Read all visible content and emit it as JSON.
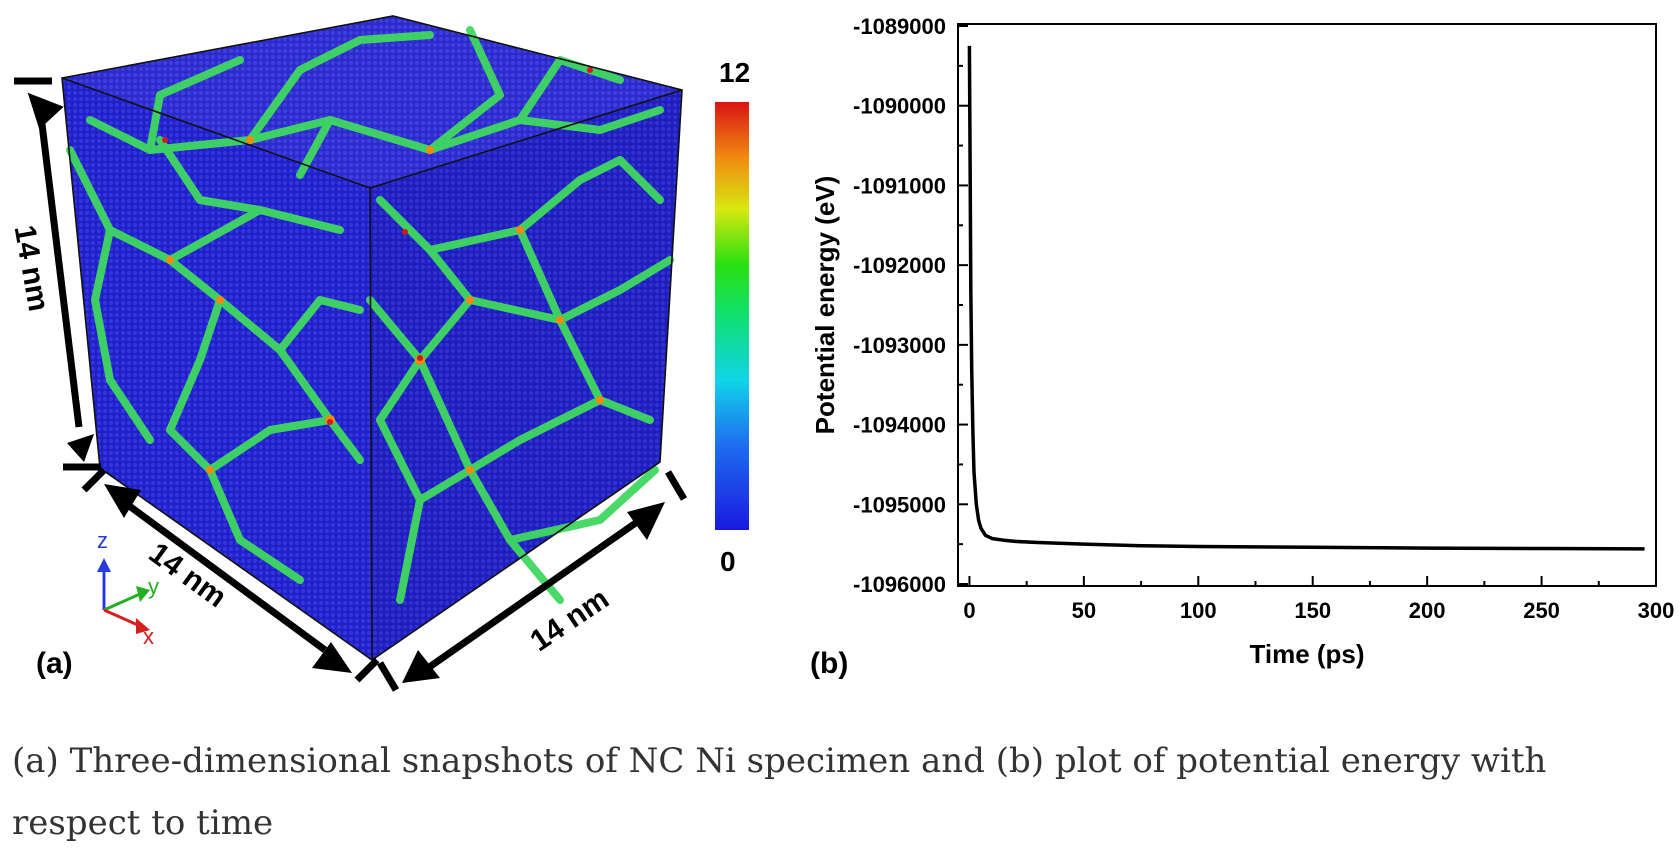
{
  "panel_a": {
    "label": "(a)",
    "dim_z": "14 nm",
    "dim_x": "14 nm",
    "dim_y": "14 nm",
    "colorbar_max": "12",
    "colorbar_min": "0",
    "axis_z": "z",
    "axis_y": "y",
    "axis_x": "x",
    "colors": {
      "grain": "#1f1fc8",
      "boundary": "#3fd860",
      "max": "#d11a1a"
    }
  },
  "panel_b": {
    "label": "(b)"
  },
  "chart_data": {
    "type": "line",
    "title": "",
    "xlabel": "Time (ps)",
    "ylabel": "Potential energy (eV)",
    "xlim": [
      -5,
      300
    ],
    "ylim": [
      -1096000,
      -1089000
    ],
    "xticks": [
      0,
      50,
      100,
      150,
      200,
      250,
      300
    ],
    "yticks": [
      -1096000,
      -1095000,
      -1094000,
      -1093000,
      -1092000,
      -1091000,
      -1090000,
      -1089000
    ],
    "xtick_labels": [
      "0",
      "50",
      "100",
      "150",
      "200",
      "250",
      "300"
    ],
    "ytick_labels": [
      "-1096000",
      "-1095000",
      "-1094000",
      "-1093000",
      "-1092000",
      "-1091000",
      "-1090000",
      "-1089000"
    ],
    "grid": false,
    "series": [
      {
        "color": "#000000",
        "x": [
          0,
          0.3,
          0.6,
          1,
          1.5,
          2,
          3,
          4,
          5,
          7,
          10,
          15,
          20,
          30,
          50,
          75,
          100,
          150,
          200,
          250,
          295
        ],
        "y": [
          -1089250,
          -1090700,
          -1092300,
          -1093300,
          -1094100,
          -1094600,
          -1095000,
          -1095200,
          -1095300,
          -1095390,
          -1095430,
          -1095450,
          -1095465,
          -1095480,
          -1095500,
          -1095520,
          -1095530,
          -1095540,
          -1095550,
          -1095555,
          -1095560
        ]
      }
    ]
  },
  "caption": "(a) Three-dimensional snapshots of NC Ni specimen and (b) plot of potential energy with respect to time"
}
